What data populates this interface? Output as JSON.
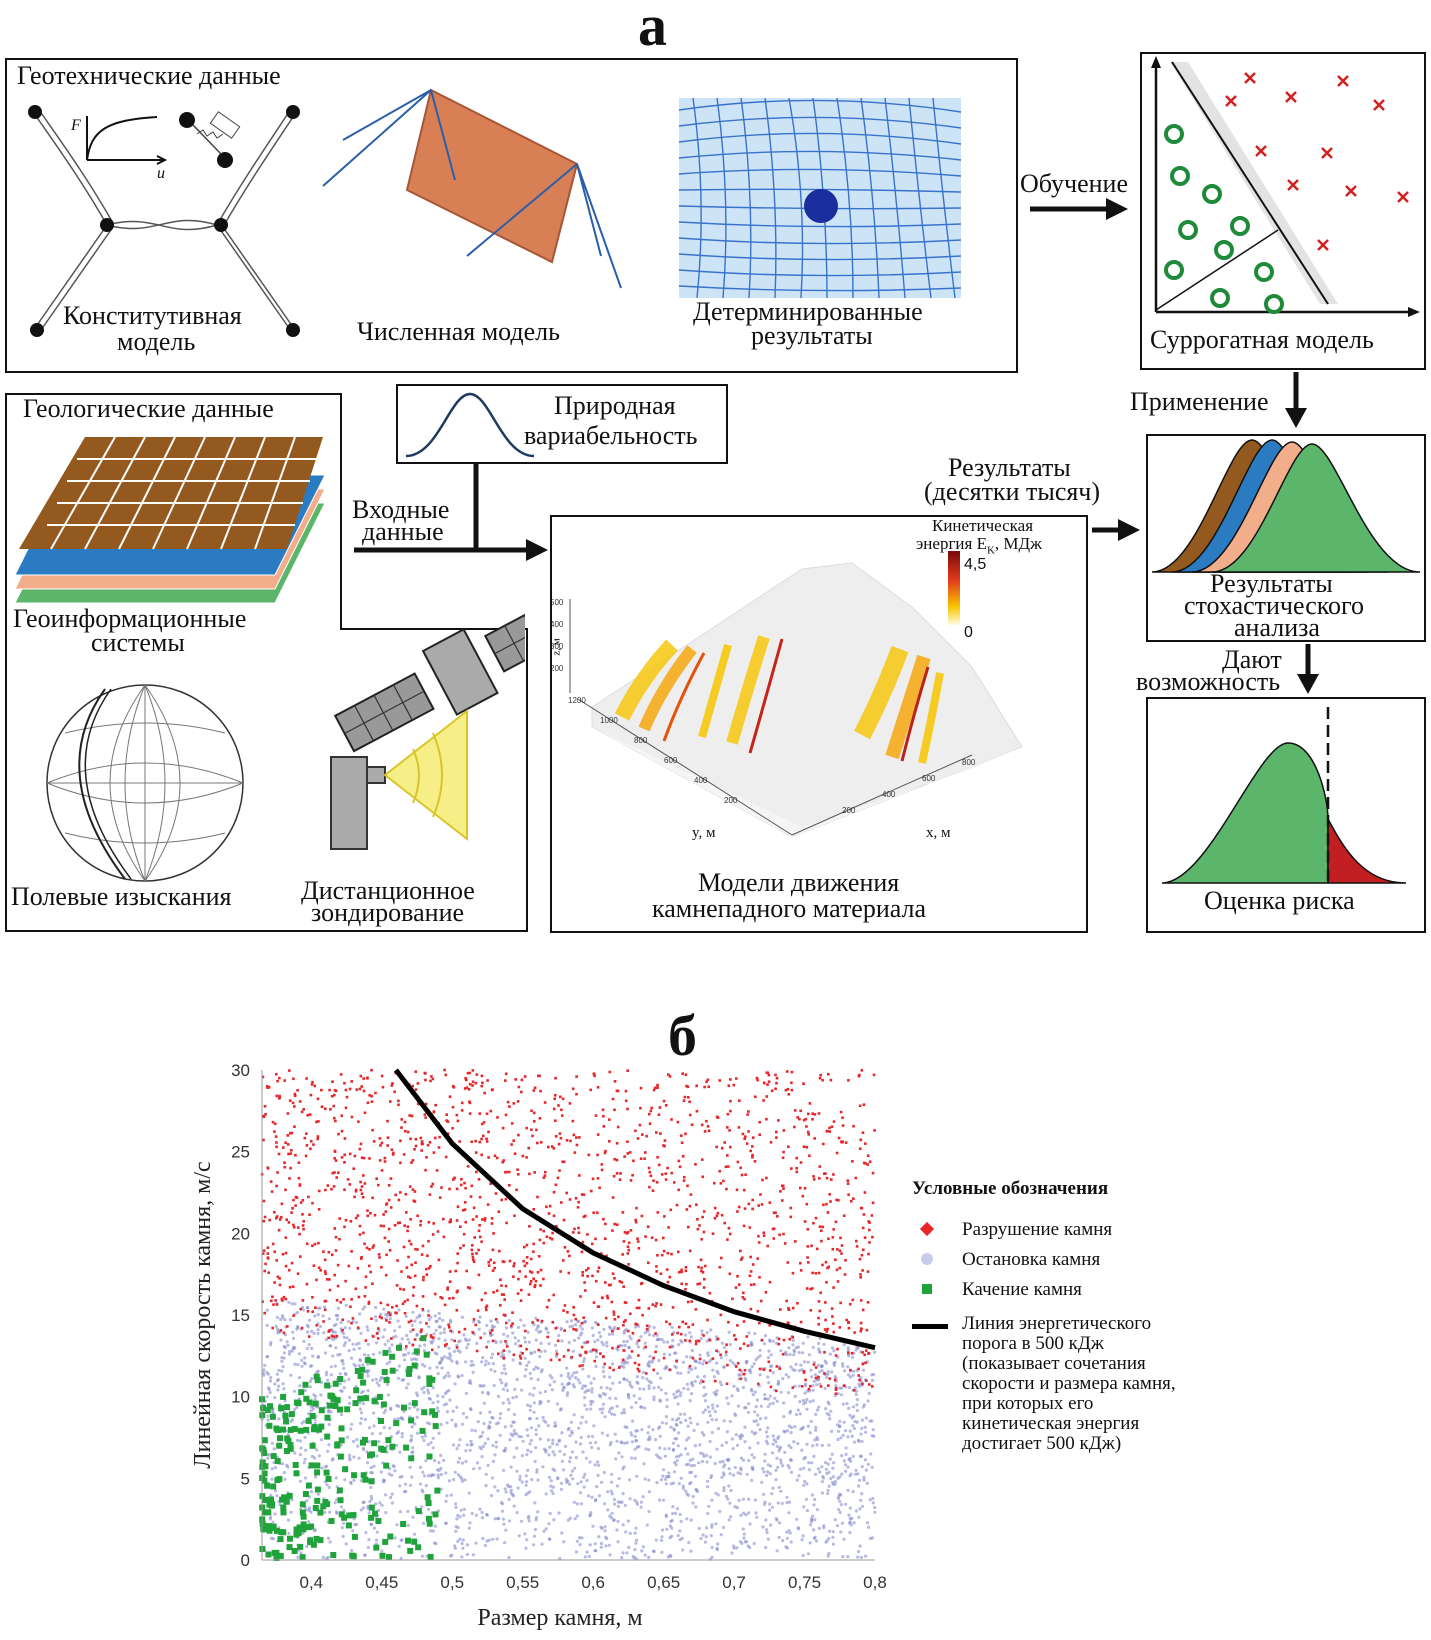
{
  "panel_a": {
    "letter": "а",
    "geotech": {
      "title": "Геотехнические данные",
      "constitutive_line1": "Конститутивная",
      "constitutive_line2": "модель",
      "numerical": "Численная модель",
      "determ_line1": "Детерминированные",
      "determ_line2": "результаты",
      "f_label": "F",
      "u_label": "u"
    },
    "training": "Обучение",
    "surrogate": "Суррогатная модель",
    "application": "Применение",
    "natural_line1": "Природная",
    "natural_line2": "вариабельность",
    "input_line1": "Входные",
    "input_line2": "данные",
    "geology": {
      "title": "Геологические данные",
      "gis_line1": "Геоинформационные",
      "gis_line2": "системы",
      "field": "Полевые изыскания",
      "remote_line1": "Дистанционное",
      "remote_line2": "зондирование"
    },
    "results_line1": "Результаты",
    "results_line2": "(десятки тысяч)",
    "rockfall": {
      "cb_line1": "Кинетическая",
      "cb_line2": "энергия E",
      "cb_sub": "K",
      "cb_unit": ", МДж",
      "cb_max": "4,5",
      "cb_min": "0",
      "title_line1": "Модели движения",
      "title_line2": "камнепадного материала",
      "z_label": "z, м",
      "y_label": "y, м",
      "x_label": "x, м",
      "z_ticks": [
        "500",
        "400",
        "300",
        "200"
      ],
      "y_ticks": [
        "1200",
        "1000",
        "800",
        "600",
        "400",
        "200"
      ],
      "x_ticks": [
        "800",
        "600",
        "400",
        "200"
      ]
    },
    "stoch_line1": "Результаты",
    "stoch_line2": "стохастического",
    "stoch_line3": "анализа",
    "enable_line1": "Дают",
    "enable_line2": "возможность",
    "risk": "Оценка риска",
    "colors": {
      "brown": "#93591f",
      "blue": "#2a7bc2",
      "salmon": "#f2ae8b",
      "green": "#5bb56a",
      "red": "#c21f22",
      "orange_panel": "#d97f56"
    }
  },
  "panel_b": {
    "letter": "б",
    "chart_data": {
      "type": "scatter",
      "xlabel": "Размер камня, м",
      "ylabel": "Линейная скорость камня, м/с",
      "xlim": [
        0.365,
        0.8
      ],
      "ylim": [
        0,
        30
      ],
      "x_ticks": [
        0.4,
        0.45,
        0.5,
        0.55,
        0.6,
        0.65,
        0.7,
        0.75,
        0.8
      ],
      "x_tick_labels": [
        "0,4",
        "0,45",
        "0,5",
        "0,55",
        "0,6",
        "0,65",
        "0,7",
        "0,75",
        "0,8"
      ],
      "y_ticks": [
        0,
        5,
        10,
        15,
        20,
        25,
        30
      ],
      "y_tick_labels": [
        "0",
        "5",
        "10",
        "15",
        "20",
        "25",
        "30"
      ],
      "series": [
        {
          "name": "Разрушение камня",
          "color": "#e8262a",
          "marker": "diamond",
          "region": "velocity roughly 12–30 m/s, all sizes"
        },
        {
          "name": "Остановка камня",
          "color": "#7d82c9",
          "marker": "circle",
          "region": "velocity roughly 0–16 m/s, all sizes"
        },
        {
          "name": "Качение камня",
          "color": "#1fa33a",
          "marker": "square",
          "region": "size 0.365–0.49 m, velocity 0–14 m/s"
        }
      ],
      "threshold": {
        "name": "Линия энергетического порога в 500 кДж (показывает сочетания скорости и размера камня, при которых его кинетическая энергия достигает 500 кДж)",
        "points": [
          [
            0.46,
            30
          ],
          [
            0.5,
            25.5
          ],
          [
            0.55,
            21.5
          ],
          [
            0.6,
            18.8
          ],
          [
            0.65,
            16.8
          ],
          [
            0.7,
            15.2
          ],
          [
            0.75,
            14.0
          ],
          [
            0.8,
            13.0
          ]
        ]
      }
    },
    "legend": {
      "title": "Условные обозначения",
      "break": "Разрушение камня",
      "stop": "Остановка камня",
      "roll": "Качение камня",
      "line_1": "Линия энергетического",
      "line_2": "порога в 500 кДж",
      "line_3": "(показывает сочетания",
      "line_4": "скорости и размера камня,",
      "line_5": "при которых его",
      "line_6": "кинетическая энергия",
      "line_7": "достигает 500 кДж)"
    }
  }
}
